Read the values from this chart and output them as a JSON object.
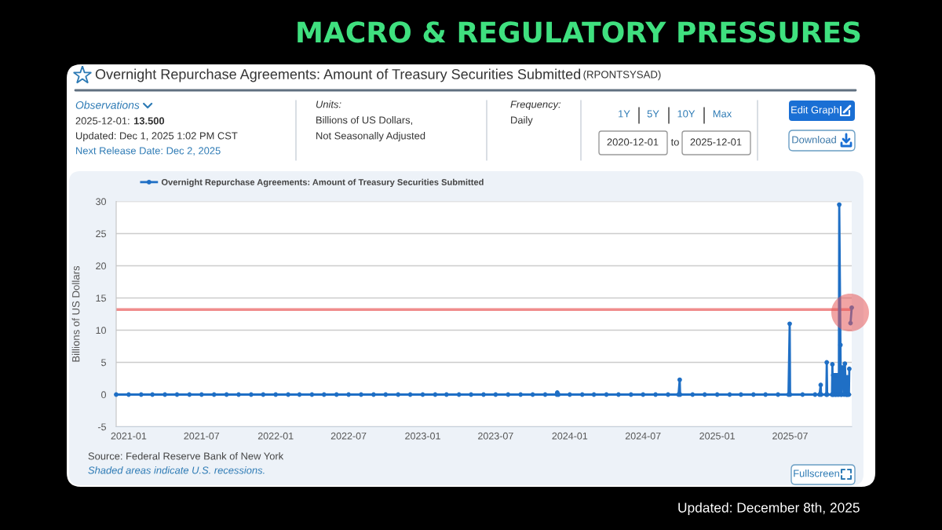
{
  "chart_data": {
    "type": "line",
    "title": "MACRO & REGULATORY PRESSURES",
    "subtitle": "Overnight Repurchase Agreements: Amount of Treasury Securities Submitted",
    "ylabel": "Billions of US Dollars",
    "x": [
      "2020-12-01",
      "2021-01-01",
      "2021-02-01",
      "2021-03-01",
      "2021-04-01",
      "2021-05-01",
      "2021-06-01",
      "2021-07-01",
      "2021-08-01",
      "2021-09-01",
      "2021-10-01",
      "2021-11-01",
      "2021-12-01",
      "2022-01-01",
      "2022-02-01",
      "2022-03-01",
      "2022-04-01",
      "2022-05-01",
      "2022-06-01",
      "2022-07-01",
      "2022-08-01",
      "2022-09-01",
      "2022-10-01",
      "2022-11-01",
      "2022-12-01",
      "2023-01-01",
      "2023-02-01",
      "2023-03-01",
      "2023-04-01",
      "2023-05-01",
      "2023-06-01",
      "2023-07-01",
      "2023-08-01",
      "2023-09-01",
      "2023-10-01",
      "2023-11-01",
      "2023-11-30",
      "2023-12-01",
      "2023-12-04",
      "2024-01-01",
      "2024-02-01",
      "2024-03-01",
      "2024-04-01",
      "2024-05-01",
      "2024-06-01",
      "2024-07-01",
      "2024-08-01",
      "2024-09-01",
      "2024-09-27",
      "2024-09-30",
      "2024-10-01",
      "2024-11-01",
      "2024-12-01",
      "2025-01-01",
      "2025-02-01",
      "2025-03-01",
      "2025-04-01",
      "2025-05-01",
      "2025-06-01",
      "2025-06-27",
      "2025-06-30",
      "2025-07-01",
      "2025-08-01",
      "2025-09-01",
      "2025-09-12",
      "2025-09-15",
      "2025-09-16",
      "2025-09-29",
      "2025-09-30",
      "2025-10-01",
      "2025-10-13",
      "2025-10-14",
      "2025-10-15",
      "2025-10-16",
      "2025-10-17",
      "2025-10-20",
      "2025-10-21",
      "2025-10-22",
      "2025-10-23",
      "2025-10-24",
      "2025-10-27",
      "2025-10-28",
      "2025-10-29",
      "2025-10-30",
      "2025-10-31",
      "2025-11-03",
      "2025-11-04",
      "2025-11-06",
      "2025-11-07",
      "2025-11-10",
      "2025-11-12",
      "2025-11-14",
      "2025-11-17",
      "2025-11-19",
      "2025-11-20",
      "2025-11-21",
      "2025-11-24",
      "2025-11-25",
      "2025-11-26",
      "2025-11-28",
      "2025-12-01"
    ],
    "series": [
      {
        "name": "Overnight Repurchase Agreements: Amount of Treasury Securities Submitted",
        "color": "#1f6fc5",
        "values": [
          0,
          0,
          0,
          0,
          0,
          0,
          0,
          0,
          0,
          0,
          0,
          0,
          0,
          0,
          0,
          0,
          0,
          0,
          0,
          0,
          0,
          0,
          0,
          0,
          0,
          0,
          0,
          0,
          0,
          0,
          0,
          0,
          0,
          0,
          0,
          0,
          0,
          0.3,
          0,
          0,
          0,
          0,
          0,
          0,
          0,
          0,
          0,
          0,
          0,
          2.3,
          0,
          0,
          0,
          0,
          0,
          0,
          0,
          0,
          0,
          0,
          11.0,
          0,
          0,
          0,
          0,
          1.5,
          0,
          0,
          5.0,
          0,
          0,
          4.7,
          0,
          3.0,
          0,
          3.0,
          0,
          3.0,
          0,
          3.0,
          0,
          3.0,
          3.0,
          0,
          29.5,
          7.7,
          0,
          0,
          4.2,
          4.2,
          0,
          4.8,
          0,
          0,
          2.7,
          0,
          0,
          4.0,
          null,
          11.1,
          13.5
        ]
      }
    ],
    "xlim": [
      "2020-12-01",
      "2025-12-01"
    ],
    "xticks": [
      "2021-01",
      "2021-07",
      "2022-01",
      "2022-07",
      "2023-01",
      "2023-07",
      "2024-01",
      "2024-07",
      "2025-01",
      "2025-07"
    ],
    "ylim": [
      -5,
      30
    ],
    "yticks": [
      -5,
      0,
      5,
      10,
      15,
      20,
      25,
      30
    ],
    "grid": "y",
    "legend": "top left",
    "marker": "circle",
    "line_style": "solid",
    "ref_lines": [
      {
        "axis": "y",
        "value": 13.2,
        "color": "#f08c8c"
      }
    ],
    "annotations": [
      "(RPONTSYSAD)",
      "Observations",
      "2025-12-01:",
      "13.500",
      "Updated: Dec 1, 2025 1:02 PM CST",
      "Next Release Date: Dec 2, 2025",
      "Units:",
      "Billions of US Dollars,",
      "Not Seasonally Adjusted",
      "Frequency:",
      "Daily",
      "1Y",
      "5Y",
      "10Y",
      "Max",
      "2020-12-01",
      "to",
      "2025-12-01",
      "Edit Graph",
      "Download",
      "Source: Federal Reserve Bank of New York",
      "Shaded areas indicate U.S. recessions.",
      "Fullscreen",
      "Updated: December 8th, 2025"
    ]
  }
}
